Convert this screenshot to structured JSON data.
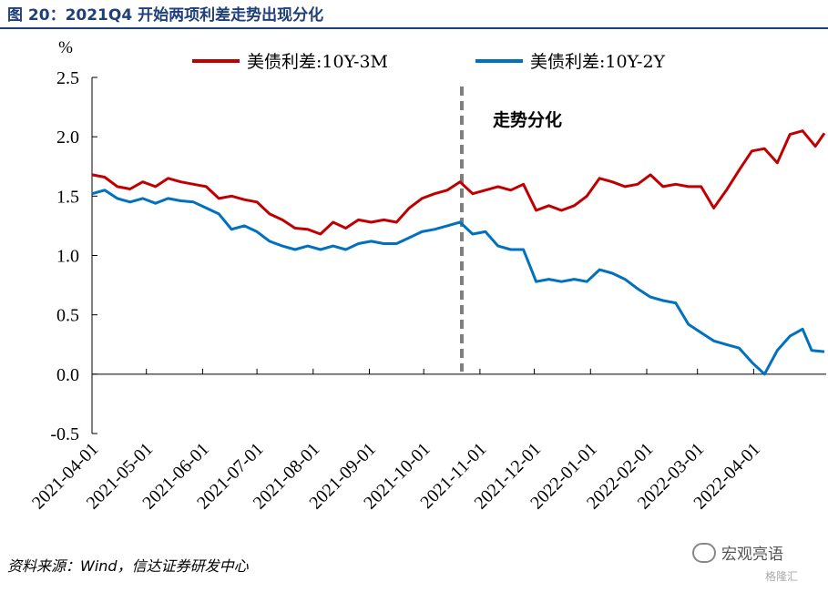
{
  "figure_title": "图 20：2021Q4 开始两项利差走势出现分化",
  "source_note": "资料来源：Wind，信达证券研发中心",
  "watermark": "宏观亮语",
  "watermark2": "格隆汇",
  "chart_data": {
    "type": "line",
    "y_unit": "%",
    "ylim": [
      -0.5,
      2.5
    ],
    "yticks": [
      "2.5",
      "2.0",
      "1.5",
      "1.0",
      "0.5",
      "0.0",
      "-0.5"
    ],
    "x_tick_labels": [
      "2021-04-01",
      "2021-05-01",
      "2021-06-01",
      "2021-07-01",
      "2021-08-01",
      "2021-09-01",
      "2021-10-01",
      "2021-11-01",
      "2021-12-01",
      "2022-01-01",
      "2022-02-01",
      "2022-03-01",
      "2022-04-01"
    ],
    "annotation": {
      "text": "走势分化",
      "x": "2021-10-22"
    },
    "legend_position": "top",
    "grid": false,
    "series": [
      {
        "name": "美债利差:10Y-3M",
        "color": "#c00000",
        "points": [
          [
            "2021-04-01",
            1.68
          ],
          [
            "2021-04-08",
            1.66
          ],
          [
            "2021-04-15",
            1.58
          ],
          [
            "2021-04-22",
            1.56
          ],
          [
            "2021-04-29",
            1.62
          ],
          [
            "2021-05-06",
            1.58
          ],
          [
            "2021-05-13",
            1.65
          ],
          [
            "2021-05-20",
            1.62
          ],
          [
            "2021-05-27",
            1.6
          ],
          [
            "2021-06-03",
            1.58
          ],
          [
            "2021-06-10",
            1.48
          ],
          [
            "2021-06-17",
            1.5
          ],
          [
            "2021-06-24",
            1.47
          ],
          [
            "2021-07-01",
            1.45
          ],
          [
            "2021-07-08",
            1.35
          ],
          [
            "2021-07-15",
            1.3
          ],
          [
            "2021-07-22",
            1.23
          ],
          [
            "2021-07-29",
            1.22
          ],
          [
            "2021-08-05",
            1.18
          ],
          [
            "2021-08-12",
            1.28
          ],
          [
            "2021-08-19",
            1.23
          ],
          [
            "2021-08-26",
            1.3
          ],
          [
            "2021-09-02",
            1.28
          ],
          [
            "2021-09-09",
            1.3
          ],
          [
            "2021-09-16",
            1.28
          ],
          [
            "2021-09-23",
            1.4
          ],
          [
            "2021-09-30",
            1.48
          ],
          [
            "2021-10-07",
            1.52
          ],
          [
            "2021-10-14",
            1.55
          ],
          [
            "2021-10-21",
            1.62
          ],
          [
            "2021-10-28",
            1.52
          ],
          [
            "2021-11-04",
            1.55
          ],
          [
            "2021-11-11",
            1.58
          ],
          [
            "2021-11-18",
            1.55
          ],
          [
            "2021-11-25",
            1.6
          ],
          [
            "2021-12-02",
            1.38
          ],
          [
            "2021-12-09",
            1.42
          ],
          [
            "2021-12-16",
            1.38
          ],
          [
            "2021-12-23",
            1.42
          ],
          [
            "2021-12-30",
            1.5
          ],
          [
            "2022-01-06",
            1.65
          ],
          [
            "2022-01-13",
            1.62
          ],
          [
            "2022-01-20",
            1.58
          ],
          [
            "2022-01-27",
            1.6
          ],
          [
            "2022-02-03",
            1.68
          ],
          [
            "2022-02-10",
            1.58
          ],
          [
            "2022-02-17",
            1.6
          ],
          [
            "2022-02-24",
            1.58
          ],
          [
            "2022-03-03",
            1.58
          ],
          [
            "2022-03-10",
            1.4
          ],
          [
            "2022-03-17",
            1.55
          ],
          [
            "2022-03-24",
            1.72
          ],
          [
            "2022-03-31",
            1.88
          ],
          [
            "2022-04-07",
            1.9
          ],
          [
            "2022-04-14",
            1.78
          ],
          [
            "2022-04-21",
            2.02
          ],
          [
            "2022-04-28",
            2.05
          ],
          [
            "2022-05-05",
            1.92
          ],
          [
            "2022-05-10",
            2.03
          ]
        ]
      },
      {
        "name": "美债利差:10Y-2Y",
        "color": "#0070c0",
        "points": [
          [
            "2021-04-01",
            1.52
          ],
          [
            "2021-04-08",
            1.55
          ],
          [
            "2021-04-15",
            1.48
          ],
          [
            "2021-04-22",
            1.45
          ],
          [
            "2021-04-29",
            1.48
          ],
          [
            "2021-05-06",
            1.44
          ],
          [
            "2021-05-13",
            1.48
          ],
          [
            "2021-05-20",
            1.46
          ],
          [
            "2021-05-27",
            1.45
          ],
          [
            "2021-06-03",
            1.4
          ],
          [
            "2021-06-10",
            1.35
          ],
          [
            "2021-06-17",
            1.22
          ],
          [
            "2021-06-24",
            1.25
          ],
          [
            "2021-07-01",
            1.2
          ],
          [
            "2021-07-08",
            1.12
          ],
          [
            "2021-07-15",
            1.08
          ],
          [
            "2021-07-22",
            1.05
          ],
          [
            "2021-07-29",
            1.08
          ],
          [
            "2021-08-05",
            1.05
          ],
          [
            "2021-08-12",
            1.08
          ],
          [
            "2021-08-19",
            1.05
          ],
          [
            "2021-08-26",
            1.1
          ],
          [
            "2021-09-02",
            1.12
          ],
          [
            "2021-09-09",
            1.1
          ],
          [
            "2021-09-16",
            1.1
          ],
          [
            "2021-09-23",
            1.15
          ],
          [
            "2021-09-30",
            1.2
          ],
          [
            "2021-10-07",
            1.22
          ],
          [
            "2021-10-14",
            1.25
          ],
          [
            "2021-10-21",
            1.28
          ],
          [
            "2021-10-28",
            1.18
          ],
          [
            "2021-11-04",
            1.2
          ],
          [
            "2021-11-11",
            1.08
          ],
          [
            "2021-11-18",
            1.05
          ],
          [
            "2021-11-25",
            1.05
          ],
          [
            "2021-12-02",
            0.78
          ],
          [
            "2021-12-09",
            0.8
          ],
          [
            "2021-12-16",
            0.78
          ],
          [
            "2021-12-23",
            0.8
          ],
          [
            "2021-12-30",
            0.78
          ],
          [
            "2022-01-06",
            0.88
          ],
          [
            "2022-01-13",
            0.85
          ],
          [
            "2022-01-20",
            0.8
          ],
          [
            "2022-01-27",
            0.72
          ],
          [
            "2022-02-03",
            0.65
          ],
          [
            "2022-02-10",
            0.62
          ],
          [
            "2022-02-17",
            0.6
          ],
          [
            "2022-02-24",
            0.42
          ],
          [
            "2022-03-03",
            0.35
          ],
          [
            "2022-03-10",
            0.28
          ],
          [
            "2022-03-17",
            0.25
          ],
          [
            "2022-03-24",
            0.22
          ],
          [
            "2022-03-31",
            0.1
          ],
          [
            "2022-04-07",
            0.0
          ],
          [
            "2022-04-14",
            0.2
          ],
          [
            "2022-04-21",
            0.32
          ],
          [
            "2022-04-28",
            0.38
          ],
          [
            "2022-05-03",
            0.2
          ],
          [
            "2022-05-10",
            0.19
          ]
        ]
      }
    ]
  }
}
